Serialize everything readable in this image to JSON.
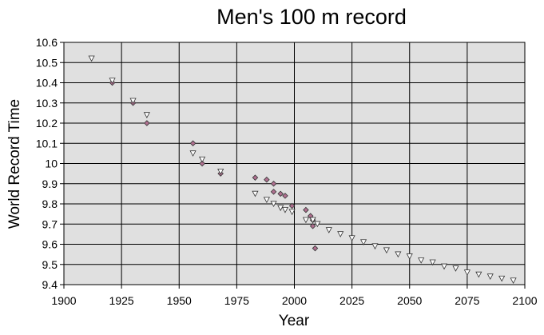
{
  "chart_data": {
    "type": "scatter",
    "title": "Men's 100 m record",
    "xlabel": "Year",
    "ylabel": "World Record Time",
    "xlim": [
      1900,
      2100
    ],
    "ylim": [
      9.4,
      10.6
    ],
    "x_ticks": [
      1900,
      1925,
      1950,
      1975,
      2000,
      2025,
      2050,
      2075,
      2100
    ],
    "y_ticks": [
      "9.4",
      "9.5",
      "9.6",
      "9.7",
      "9.8",
      "9.9",
      "10",
      "10.1",
      "10.2",
      "10.3",
      "10.4",
      "10.5",
      "10.6"
    ],
    "grid": true,
    "legend": "none",
    "colors": {
      "plot_background": "#e0e0e0",
      "grid": "#000000",
      "diamond_fill": "#b07090",
      "triangle_fill": "#ffffff",
      "marker_stroke": "#333333"
    },
    "series": [
      {
        "marker": "diamond",
        "points": [
          [
            1921,
            10.4
          ],
          [
            1930,
            10.3
          ],
          [
            1936,
            10.2
          ],
          [
            1956,
            10.1
          ],
          [
            1960,
            10.0
          ],
          [
            1968,
            9.95
          ],
          [
            1983,
            9.93
          ],
          [
            1988,
            9.92
          ],
          [
            1991,
            9.9
          ],
          [
            1991,
            9.86
          ],
          [
            1994,
            9.85
          ],
          [
            1996,
            9.84
          ],
          [
            1999,
            9.79
          ],
          [
            2005,
            9.77
          ],
          [
            2007,
            9.74
          ],
          [
            2008,
            9.72
          ],
          [
            2008,
            9.69
          ],
          [
            2009,
            9.58
          ]
        ]
      },
      {
        "marker": "triangle",
        "points": [
          [
            1912,
            10.52
          ],
          [
            1921,
            10.41
          ],
          [
            1930,
            10.31
          ],
          [
            1936,
            10.24
          ],
          [
            1956,
            10.05
          ],
          [
            1960,
            10.02
          ],
          [
            1968,
            9.96
          ],
          [
            1983,
            9.85
          ],
          [
            1988,
            9.82
          ],
          [
            1991,
            9.8
          ],
          [
            1994,
            9.78
          ],
          [
            1996,
            9.77
          ],
          [
            1999,
            9.76
          ],
          [
            2005,
            9.72
          ],
          [
            2008,
            9.72
          ],
          [
            2010,
            9.7
          ],
          [
            2015,
            9.67
          ],
          [
            2020,
            9.65
          ],
          [
            2025,
            9.63
          ],
          [
            2030,
            9.61
          ],
          [
            2035,
            9.59
          ],
          [
            2040,
            9.57
          ],
          [
            2045,
            9.55
          ],
          [
            2050,
            9.54
          ],
          [
            2055,
            9.52
          ],
          [
            2060,
            9.51
          ],
          [
            2065,
            9.49
          ],
          [
            2070,
            9.48
          ],
          [
            2075,
            9.46
          ],
          [
            2080,
            9.45
          ],
          [
            2085,
            9.44
          ],
          [
            2090,
            9.43
          ],
          [
            2095,
            9.42
          ]
        ]
      }
    ]
  }
}
